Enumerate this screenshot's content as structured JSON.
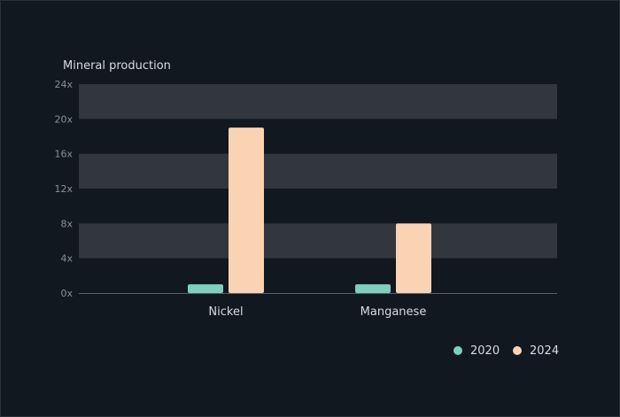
{
  "chart_data": {
    "type": "bar",
    "title": "Mineral production",
    "categories": [
      "Nickel",
      "Manganese"
    ],
    "series": [
      {
        "name": "2020",
        "values": [
          1,
          1
        ],
        "color": "#7ecfc0"
      },
      {
        "name": "2024",
        "values": [
          19,
          8
        ],
        "color": "#f9d3b4"
      }
    ],
    "yticks": [
      "0x",
      "4x",
      "8x",
      "12x",
      "16x",
      "20x",
      "24x"
    ],
    "ylim": [
      0,
      24
    ],
    "grid": "alternating bands",
    "legend_position": "bottom-right",
    "colors": {
      "background": "#111820",
      "band": "#32363d",
      "axis": "#5b6068"
    }
  }
}
